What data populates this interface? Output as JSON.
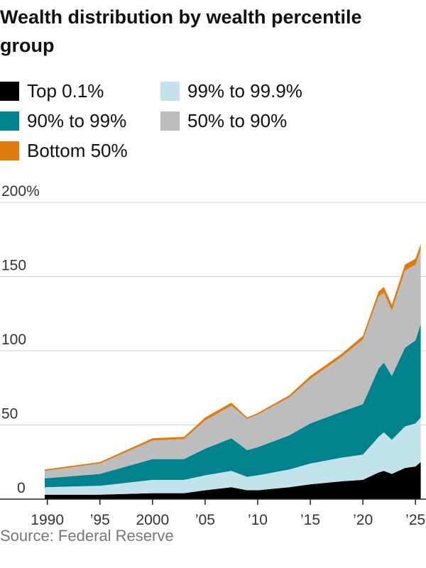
{
  "chart_data": {
    "type": "stacked-area",
    "title": "Wealth distribution by wealth percentile group",
    "source": "Source: Federal Reserve",
    "x": [
      1989.75,
      1995,
      2000,
      2003,
      2005,
      2007.5,
      2009,
      2010,
      2013,
      2015,
      2018,
      2020,
      2021.5,
      2022,
      2022.75,
      2024,
      2025,
      2025.5
    ],
    "series": [
      {
        "name": "Top 0.1%",
        "color": "#000000",
        "values": [
          3,
          3,
          4,
          4,
          6,
          8,
          6,
          6,
          8,
          10,
          12,
          13,
          18,
          19,
          17,
          21,
          22,
          25
        ]
      },
      {
        "name": "99% to 99.9%",
        "color": "#c3e3ec",
        "values": [
          5,
          6,
          9,
          9,
          10,
          11,
          9,
          10,
          12,
          14,
          16,
          17,
          24,
          26,
          23,
          28,
          29,
          30
        ]
      },
      {
        "name": "90% to 99%",
        "color": "#00838f",
        "values": [
          6,
          8,
          14,
          14,
          18,
          22,
          18,
          19,
          23,
          27,
          31,
          34,
          46,
          47,
          43,
          53,
          56,
          63
        ]
      },
      {
        "name": "50% to 90%",
        "color": "#bdbdbd",
        "values": [
          5,
          7,
          12.5,
          13.5,
          19,
          22,
          21,
          22,
          25.5,
          30,
          37,
          43.5,
          48.5,
          47,
          44,
          52,
          51,
          50
        ]
      },
      {
        "name": "Bottom 50%",
        "color": "#e07b10",
        "values": [
          1,
          1,
          1.5,
          1.5,
          2,
          2,
          1,
          1,
          1.5,
          2,
          2,
          2.5,
          3.5,
          4,
          4,
          4,
          4,
          4
        ]
      }
    ],
    "xlim": [
      1985.5,
      2026
    ],
    "xticks": [
      1990,
      {
        "value": 1995,
        "label": "’95"
      },
      2000,
      {
        "value": 2005,
        "label": "’05"
      },
      {
        "value": 2010,
        "label": "’10"
      },
      {
        "value": 2015,
        "label": "’15"
      },
      {
        "value": 2020,
        "label": "’20"
      },
      {
        "value": 2025,
        "label": "’25"
      }
    ],
    "ylim": [
      0,
      200
    ],
    "yticks": [
      0,
      50,
      100,
      150,
      {
        "value": 200,
        "label": "200%"
      }
    ],
    "grid": true
  }
}
